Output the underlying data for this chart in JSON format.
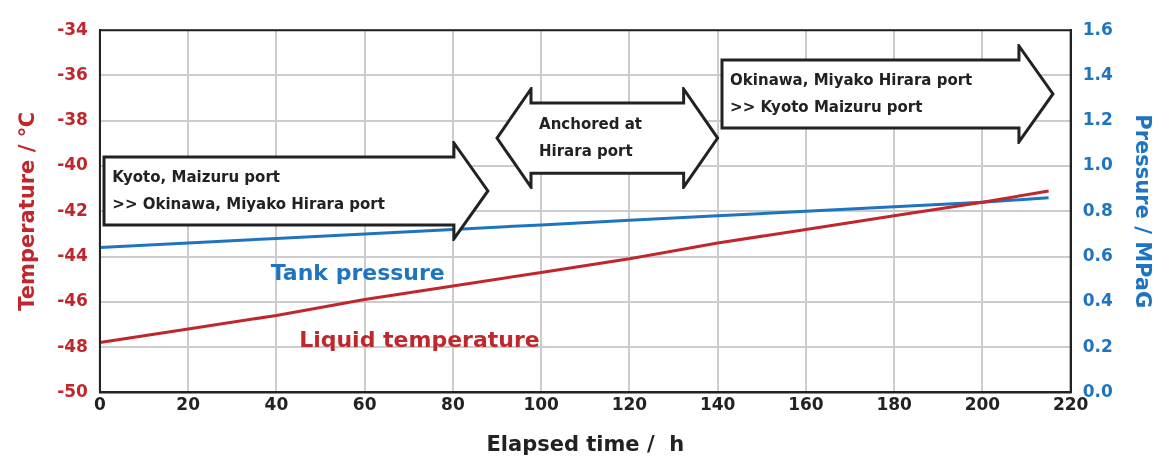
{
  "chart_data": {
    "type": "line",
    "xlabel": "Elapsed time /  h",
    "ylabel": "Temperature / ℃",
    "y2label": "Pressure / MPaG",
    "xlim": [
      0,
      220
    ],
    "xticks": [
      0,
      20,
      40,
      60,
      80,
      100,
      120,
      140,
      160,
      180,
      200,
      220
    ],
    "ylim": [
      -50,
      -34
    ],
    "yticks": [
      -50,
      -48,
      -46,
      -44,
      -42,
      -40,
      -38,
      -36,
      -34
    ],
    "y2lim": [
      0,
      1.6
    ],
    "y2ticks": [
      {
        "value": 0,
        "label": "0.0"
      },
      {
        "value": 0.2,
        "label": "0.2"
      },
      {
        "value": 0.4,
        "label": "0.4"
      },
      {
        "value": 0.6,
        "label": "0.6"
      },
      {
        "value": 0.8,
        "label": "0.8"
      },
      {
        "value": 1,
        "label": "1.0"
      },
      {
        "value": 1.2,
        "label": "1.2"
      },
      {
        "value": 1.4,
        "label": "1.4"
      },
      {
        "value": 1.6,
        "label": "1.6"
      }
    ],
    "grid": true,
    "legend": false,
    "marker": "none",
    "series": [
      {
        "name": "Liquid temperature",
        "color": "#c0272d",
        "x": [
          0,
          20,
          40,
          60,
          80,
          100,
          120,
          140,
          160,
          180,
          200,
          215
        ],
        "values": [
          -47.8,
          -47.2,
          -46.6,
          -45.9,
          -45.3,
          -44.7,
          -44.1,
          -43.4,
          -42.8,
          -42.2,
          -41.6,
          -41.1
        ]
      },
      {
        "name": "Tank pressure",
        "color": "#1f74c0",
        "x": [
          0,
          20,
          40,
          60,
          80,
          100,
          120,
          140,
          160,
          180,
          200,
          215
        ],
        "values": [
          0.64,
          0.66,
          0.68,
          0.7,
          0.72,
          0.74,
          0.76,
          0.78,
          0.8,
          0.82,
          0.84,
          0.86
        ],
        "axis": "y2"
      }
    ],
    "annotations": [
      "Kyoto, Maizuru port\n>> Okinawa, Miyako Hirara port",
      "Anchored at\nHirara port",
      "Okinawa, Miyako Hirara port\n>> Kyoto Maizuru port"
    ]
  }
}
